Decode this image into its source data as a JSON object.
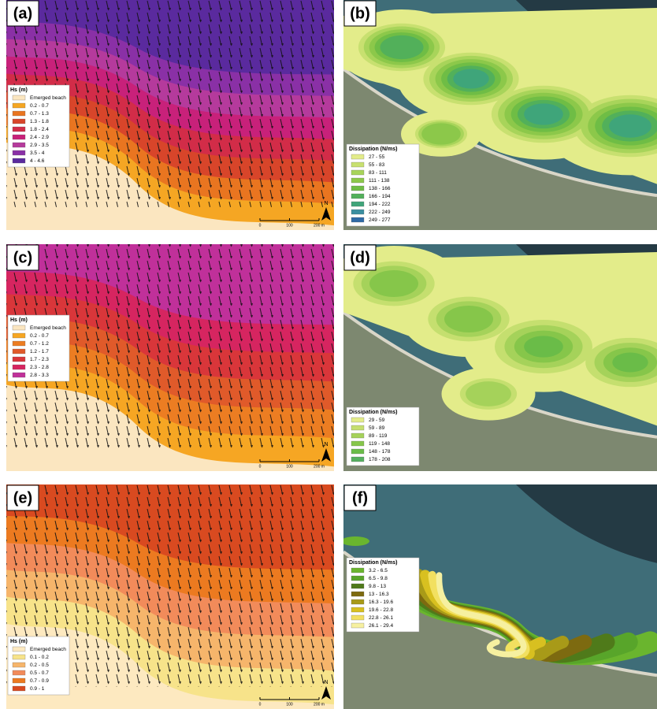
{
  "panels": [
    {
      "label": "(a)",
      "legend": {
        "title": "Hs (m)",
        "items": [
          {
            "label": "Emerged beach",
            "color": "#fbe6c0"
          },
          {
            "label": "0.2 - 0.7",
            "color": "#f5a623"
          },
          {
            "label": "0.7 - 1.3",
            "color": "#e97520"
          },
          {
            "label": "1.3 - 1.8",
            "color": "#d8452a"
          },
          {
            "label": "1.8 - 2.4",
            "color": "#d22c48"
          },
          {
            "label": "2.4 - 2.9",
            "color": "#c8217a"
          },
          {
            "label": "2.9 - 3.5",
            "color": "#b53a9c"
          },
          {
            "label": "3.5 - 4",
            "color": "#8a30a6"
          },
          {
            "label": "4 - 4.6",
            "color": "#5a2a9e"
          }
        ]
      },
      "scale": {
        "labels": [
          "0",
          "100",
          "200 m"
        ],
        "north": "N"
      }
    },
    {
      "label": "(b)",
      "legend": {
        "title": "Dissipation (N/ms)",
        "items": [
          {
            "label": "27 - 55",
            "color": "#e3ec8a"
          },
          {
            "label": "55 - 83",
            "color": "#c8e070"
          },
          {
            "label": "83 - 111",
            "color": "#a8d45a"
          },
          {
            "label": "111 - 138",
            "color": "#8cc84a"
          },
          {
            "label": "138 - 166",
            "color": "#6fbd45"
          },
          {
            "label": "166 - 194",
            "color": "#52b05a"
          },
          {
            "label": "194 - 222",
            "color": "#3fa57a"
          },
          {
            "label": "222 - 249",
            "color": "#3a8fa0"
          },
          {
            "label": "249 - 277",
            "color": "#2f6aa6"
          }
        ]
      }
    },
    {
      "label": "(c)",
      "legend": {
        "title": "Hs (m)",
        "items": [
          {
            "label": "Emerged beach",
            "color": "#fbe6c0"
          },
          {
            "label": "0.2 - 0.7",
            "color": "#f6a623"
          },
          {
            "label": "0.7 - 1.2",
            "color": "#ec7d22"
          },
          {
            "label": "1.2 - 1.7",
            "color": "#e05a2a"
          },
          {
            "label": "1.7 - 2.3",
            "color": "#d9363a"
          },
          {
            "label": "2.3 - 2.8",
            "color": "#d62560"
          },
          {
            "label": "2.8 - 3.3",
            "color": "#c0309a"
          }
        ]
      },
      "scale": {
        "labels": [
          "0",
          "100",
          "200 m"
        ],
        "north": "N"
      }
    },
    {
      "label": "(d)",
      "legend": {
        "title": "Dissipation (N/ms)",
        "items": [
          {
            "label": "29 - 59",
            "color": "#e3ec8a"
          },
          {
            "label": "59 - 89",
            "color": "#c5df6f"
          },
          {
            "label": "89 - 119",
            "color": "#a5d25a"
          },
          {
            "label": "119 - 148",
            "color": "#86c64a"
          },
          {
            "label": "148 - 178",
            "color": "#6abc48"
          },
          {
            "label": "178 - 208",
            "color": "#55b060"
          }
        ]
      }
    },
    {
      "label": "(e)",
      "legend": {
        "title": "Hs (m)",
        "items": [
          {
            "label": "Emerged beach",
            "color": "#fde9c0"
          },
          {
            "label": "0.1 - 0.2",
            "color": "#f7e38a"
          },
          {
            "label": "0.2 - 0.5",
            "color": "#f6b56b"
          },
          {
            "label": "0.5 - 0.7",
            "color": "#f28b5a"
          },
          {
            "label": "0.7 - 0.9",
            "color": "#ec7a20"
          },
          {
            "label": "0.9 - 1",
            "color": "#d94a20"
          }
        ]
      },
      "scale": {
        "labels": [
          "0",
          "100",
          "200 m"
        ],
        "north": "N"
      }
    },
    {
      "label": "(f)",
      "legend": {
        "title": "Dissipation (N/ms)",
        "items": [
          {
            "label": "3.2 - 6.5",
            "color": "#6ab52e"
          },
          {
            "label": "6.5 - 9.8",
            "color": "#58a52a"
          },
          {
            "label": "9.8 - 13",
            "color": "#4f7a1a"
          },
          {
            "label": "13 - 16.3",
            "color": "#7d6a10"
          },
          {
            "label": "16.3 - 19.6",
            "color": "#a89a18"
          },
          {
            "label": "19.6 - 22.8",
            "color": "#d8c020"
          },
          {
            "label": "22.8 - 26.1",
            "color": "#f2e060"
          },
          {
            "label": "26.1 - 29.4",
            "color": "#f6f0a0"
          }
        ]
      }
    }
  ]
}
